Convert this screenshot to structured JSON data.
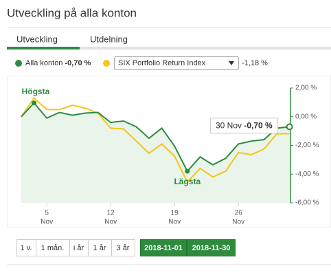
{
  "header": {
    "title": "Utveckling på alla konton"
  },
  "tabs": [
    "Utveckling",
    "Utdelning"
  ],
  "chart_data": {
    "type": "line",
    "categories": [
      null,
      null,
      "5",
      null,
      null,
      null,
      null,
      "12",
      null,
      null,
      null,
      null,
      "19",
      null,
      null,
      null,
      null,
      "26",
      null,
      null,
      null,
      null
    ],
    "x_month": "Nov",
    "series": [
      {
        "name": "Alla konton",
        "color": "#2e8b3d",
        "legend_value": "-0,70 %",
        "values": [
          0,
          0.96,
          -0.1,
          0.3,
          0.1,
          0.25,
          0.3,
          -0.4,
          -0.3,
          -0.7,
          -1.5,
          -0.8,
          -2.05,
          -3.8,
          -2.8,
          -3.35,
          -2.9,
          -1.9,
          -1.7,
          -1.6,
          -0.8,
          -0.7
        ]
      },
      {
        "name": "SIX Portfolio Return Index",
        "color": "#f5c518",
        "legend_value": "-1,18 %",
        "values": [
          0,
          1.3,
          0.5,
          0.5,
          0.8,
          0.6,
          0.25,
          -0.8,
          -0.85,
          -1.7,
          -2.55,
          -1.9,
          -2.75,
          -4.55,
          -3.6,
          -4.2,
          -3.8,
          -2.5,
          -2.65,
          -2.25,
          -1.2,
          -1.18
        ]
      }
    ],
    "ylim": [
      -6,
      2
    ],
    "yticks": [
      {
        "value": 2,
        "label": "2,00 %"
      },
      {
        "value": 0,
        "label": "0,00 %"
      },
      {
        "value": -2,
        "label": "-2,00 %"
      },
      {
        "value": -4,
        "label": "-4,00 %"
      },
      {
        "value": -6,
        "label": "-6,00 %"
      }
    ],
    "annotations": {
      "max": "Högsta",
      "min": "Lägsta"
    },
    "tooltip": {
      "date": "30 Nov",
      "value": "-0,70 %"
    }
  },
  "range_buttons": [
    "1 v.",
    "1 mån.",
    "i år",
    "1 år",
    "3 år"
  ],
  "date_range": [
    "2018-11-01",
    "2018-11-30"
  ]
}
